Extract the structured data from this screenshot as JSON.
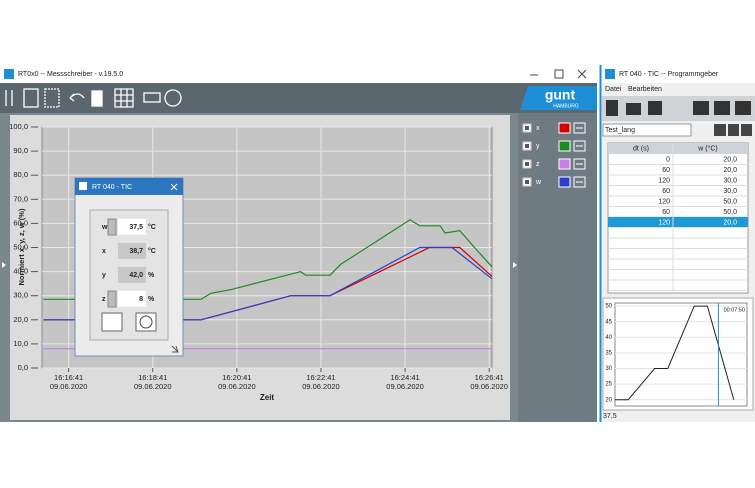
{
  "messschreiber": {
    "title": "RT0x0  --  Messschreiber - v.19.5.0",
    "logo": {
      "brand": "gunt",
      "city": "HAMBURG"
    },
    "chart": {
      "type": "line",
      "y_label": "Normiert   x, y, z, w   (%)",
      "x_label": "Zeit",
      "xlim": [
        "16:16:03",
        "16:26:45"
      ],
      "xticks": [
        "16:16:41",
        "16:18:41",
        "16:20:41",
        "16:22:41",
        "16:24:41",
        "16:26:41"
      ],
      "xtick_dates": [
        "09.06.2020",
        "09.06.2020",
        "09.06.2020",
        "09.06.2020",
        "09.06.2020",
        "09.06.2020"
      ],
      "ylim": [
        0,
        100
      ],
      "yticks": [
        {
          "value": 0,
          "label": "0,0"
        },
        {
          "value": 10,
          "label": "10,0"
        },
        {
          "value": 20,
          "label": "20,0"
        },
        {
          "value": 30,
          "label": "30,0"
        },
        {
          "value": 40,
          "label": "40,0"
        },
        {
          "value": 50,
          "label": "50,0"
        },
        {
          "value": 60,
          "label": "60,0"
        },
        {
          "value": 70,
          "label": "70,0"
        },
        {
          "value": 80,
          "label": "80,0"
        },
        {
          "value": 90,
          "label": "90,0"
        },
        {
          "value": 100,
          "label": "100,0"
        }
      ],
      "grid": true,
      "series": [
        {
          "name": "x",
          "color": "#d40000",
          "x": [
            "16:16:05",
            "16:19:50",
            "16:21:58",
            "16:22:54",
            "16:25:16",
            "16:25:59",
            "16:26:45"
          ],
          "values": [
            20,
            20,
            30,
            30,
            50,
            50,
            38
          ]
        },
        {
          "name": "y",
          "color": "#1f8a1f",
          "x": [
            "16:16:05",
            "16:19:50",
            "16:20:04",
            "16:20:32",
            "16:22:12",
            "16:22:19",
            "16:22:54",
            "16:23:09",
            "16:24:48",
            "16:25:02",
            "16:25:31",
            "16:25:38",
            "16:25:59",
            "16:26:20",
            "16:26:45"
          ],
          "values": [
            28.5,
            28.5,
            31,
            32.5,
            40,
            38.5,
            38.5,
            43,
            61.5,
            59,
            59,
            56,
            57,
            50,
            42
          ]
        },
        {
          "name": "z",
          "color": "#c77ee6",
          "x": [
            "16:16:05",
            "16:26:45"
          ],
          "values": [
            8,
            8
          ]
        },
        {
          "name": "w",
          "color": "#2a3fd0",
          "x": [
            "16:16:05",
            "16:19:50",
            "16:21:58",
            "16:22:54",
            "16:25:02",
            "16:25:48",
            "16:26:45"
          ],
          "values": [
            20,
            20,
            30,
            30,
            50,
            50,
            37
          ]
        }
      ]
    },
    "dialog": {
      "title": "RT 040 - TIC",
      "rows": [
        {
          "name": "w",
          "value": "37,5",
          "unit": "°C"
        },
        {
          "name": "x",
          "value": "38,7",
          "unit": "°C"
        },
        {
          "name": "y",
          "value": "42,0",
          "unit": "%"
        },
        {
          "name": "z",
          "value": "8",
          "unit": "%"
        }
      ]
    }
  },
  "programmgeber": {
    "title": "RT 040 - TIC  --  Programmgeber",
    "menu": [
      "Datei",
      "Bearbeiten"
    ],
    "program_name": "Test_lang",
    "table": {
      "columns": [
        "dt (s)",
        "w (°C)"
      ],
      "rows": [
        [
          0,
          {
            "value": 20,
            "label": "20,0"
          }
        ],
        [
          60,
          {
            "value": 20,
            "label": "20,0"
          }
        ],
        [
          120,
          {
            "value": 30,
            "label": "30,0"
          }
        ],
        [
          60,
          {
            "value": 30,
            "label": "30,0"
          }
        ],
        [
          120,
          {
            "value": 50,
            "label": "50,0"
          }
        ],
        [
          60,
          {
            "value": 50,
            "label": "50,0"
          }
        ],
        [
          120,
          {
            "value": 20,
            "label": "20,0"
          }
        ]
      ],
      "selected_row": 6
    },
    "chart": {
      "type": "line",
      "xlim": [
        0,
        600
      ],
      "ylim": [
        18,
        51
      ],
      "yticks": [
        20,
        25,
        30,
        35,
        40,
        45,
        50
      ],
      "cursor": {
        "value": 470,
        "label": "00:07:50"
      },
      "color": "#222222",
      "cursor_color": "#2a8fd0"
    },
    "status": "37,5"
  }
}
